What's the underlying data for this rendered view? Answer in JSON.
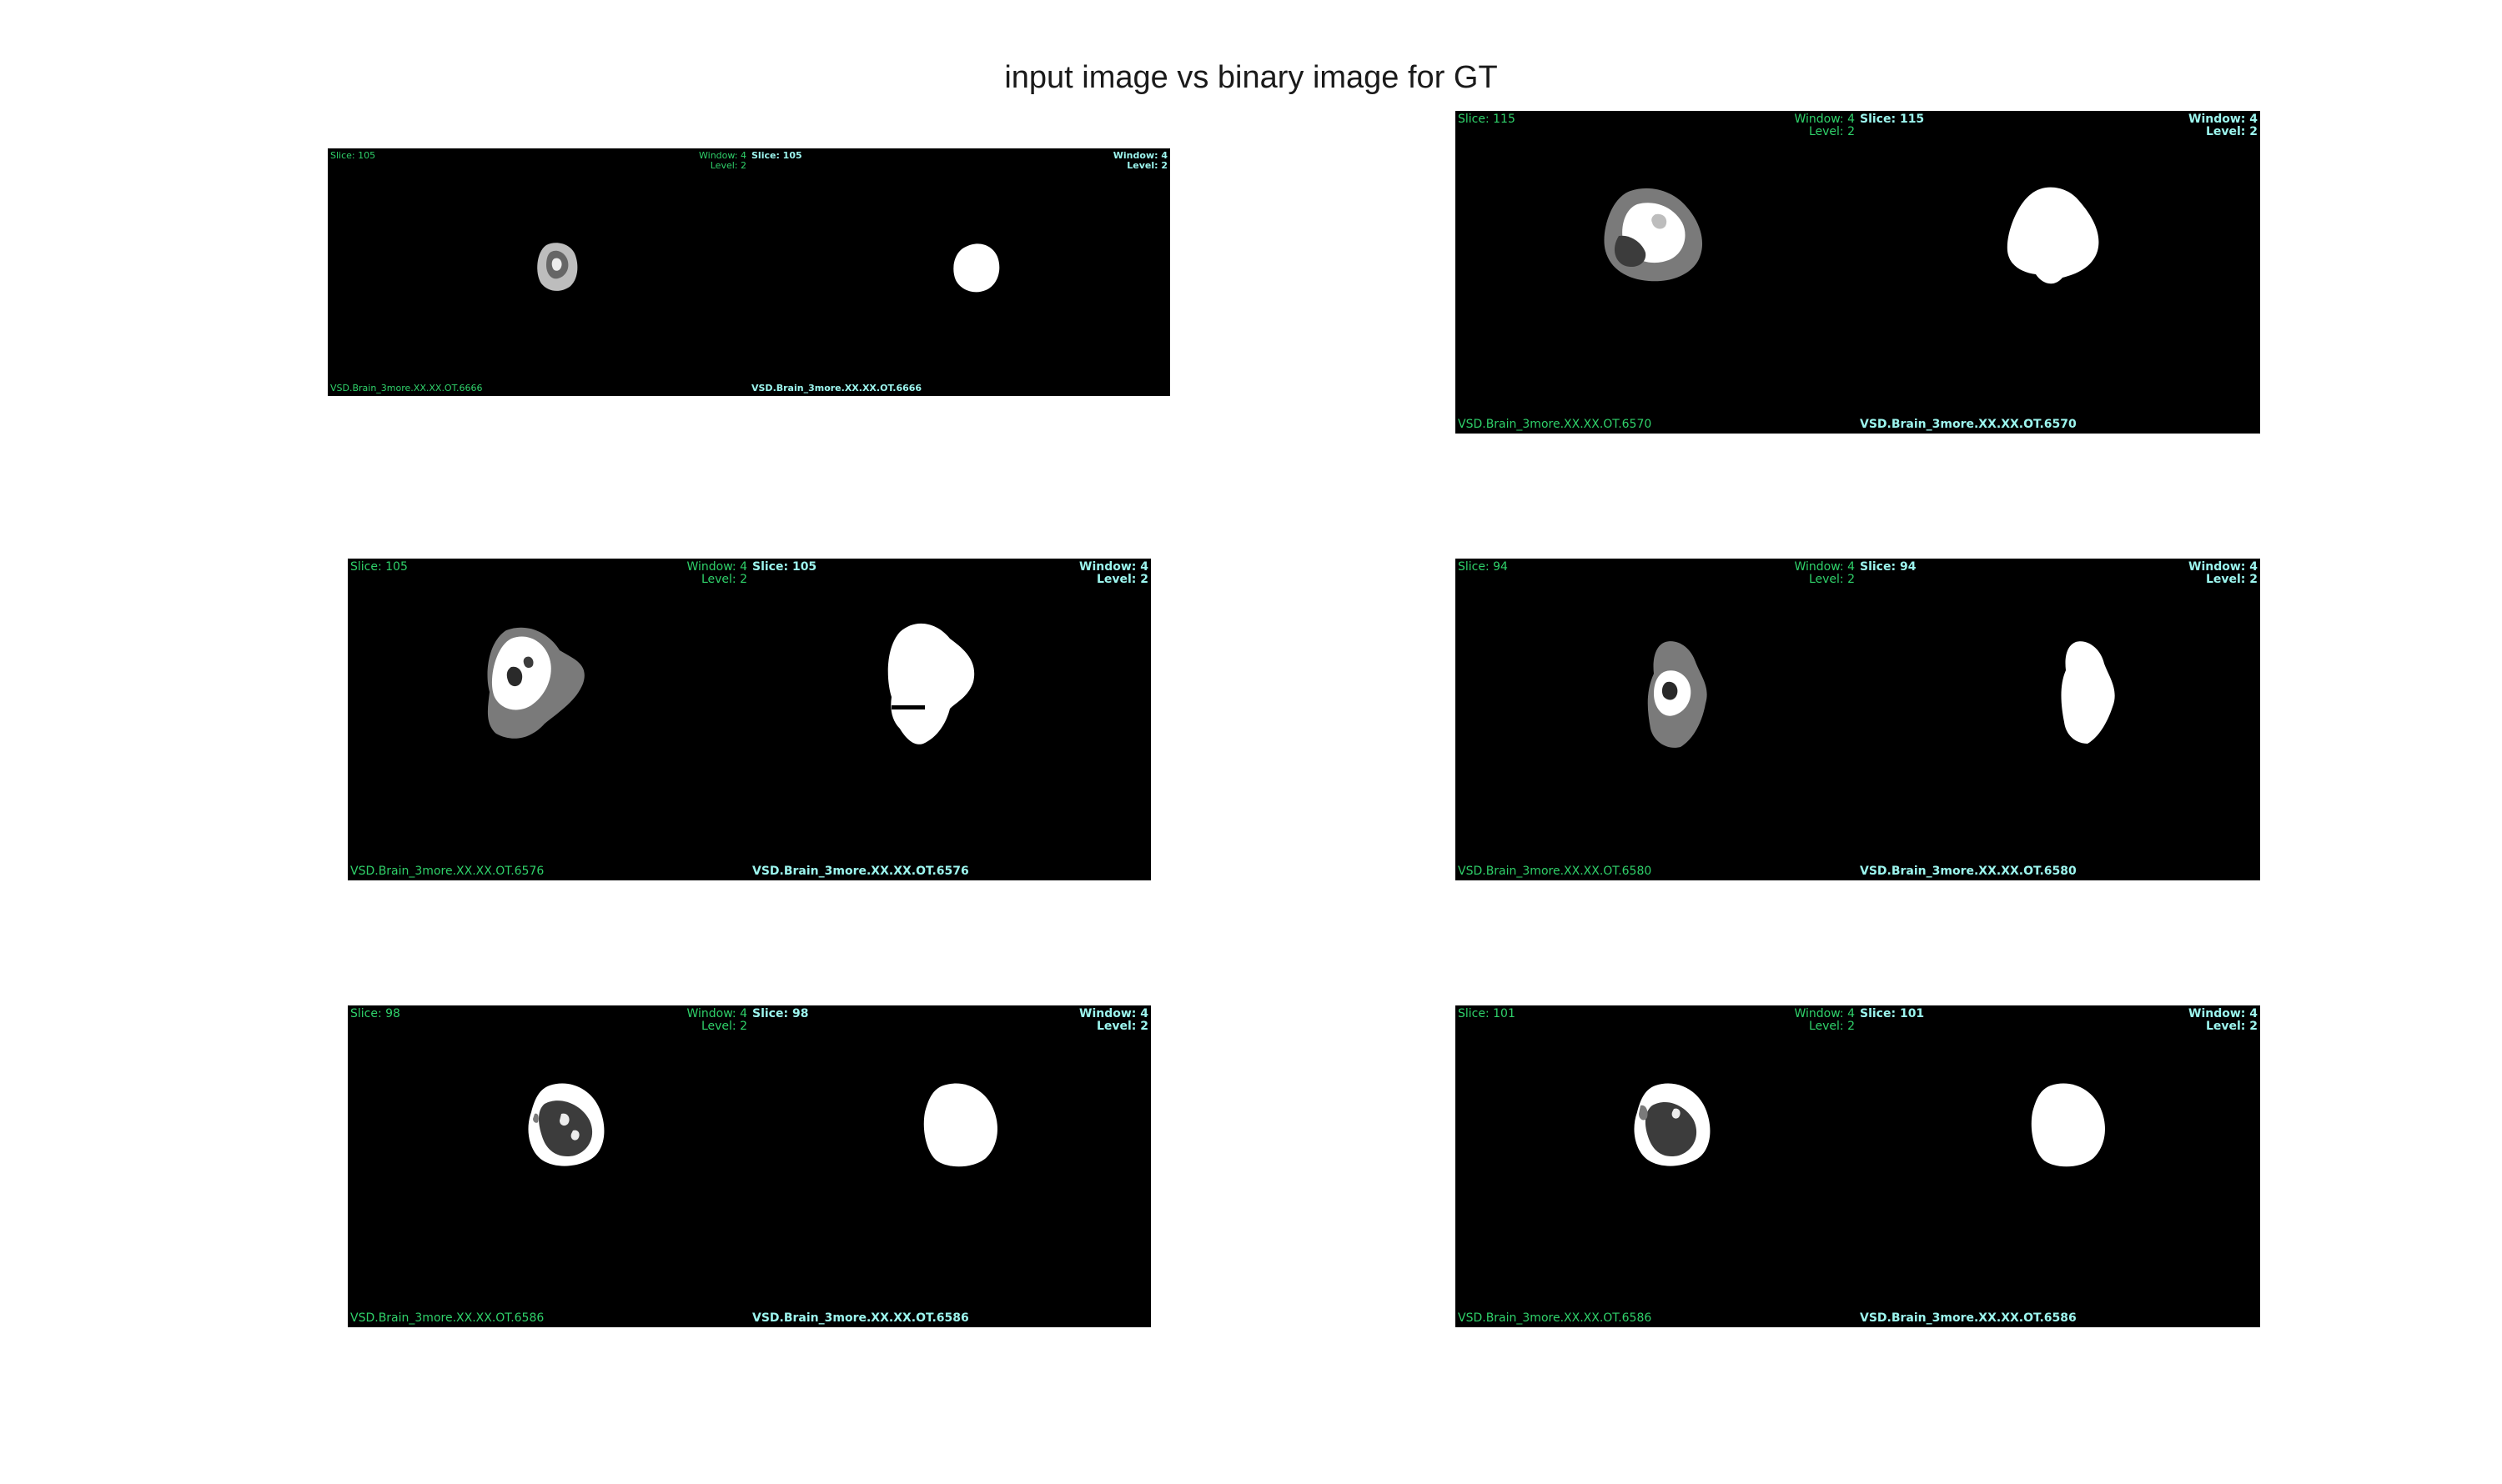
{
  "title": "input image vs binary image for GT",
  "colors": {
    "input_overlay": "#2fd16a",
    "gt_overlay": "#9cf5ee",
    "background": "#000000"
  },
  "panels": [
    {
      "input": {
        "slice": "Slice: 105",
        "window": "Window: 4",
        "level": "Level: 2",
        "file": "VSD.Brain_3more.XX.XX.OT.6666"
      },
      "gt": {
        "slice": "Slice: 105",
        "window": "Window: 4",
        "level": "Level: 2",
        "file": "VSD.Brain_3more.XX.XX.OT.6666"
      }
    },
    {
      "input": {
        "slice": "Slice: 115",
        "window": "Window: 4",
        "level": "Level: 2",
        "file": "VSD.Brain_3more.XX.XX.OT.6570"
      },
      "gt": {
        "slice": "Slice: 115",
        "window": "Window: 4",
        "level": "Level: 2",
        "file": "VSD.Brain_3more.XX.XX.OT.6570"
      }
    },
    {
      "input": {
        "slice": "Slice: 105",
        "window": "Window: 4",
        "level": "Level: 2",
        "file": "VSD.Brain_3more.XX.XX.OT.6576"
      },
      "gt": {
        "slice": "Slice: 105",
        "window": "Window: 4",
        "level": "Level: 2",
        "file": "VSD.Brain_3more.XX.XX.OT.6576"
      }
    },
    {
      "input": {
        "slice": "Slice: 94",
        "window": "Window: 4",
        "level": "Level: 2",
        "file": "VSD.Brain_3more.XX.XX.OT.6580"
      },
      "gt": {
        "slice": "Slice: 94",
        "window": "Window: 4",
        "level": "Level: 2",
        "file": "VSD.Brain_3more.XX.XX.OT.6580"
      }
    },
    {
      "input": {
        "slice": "Slice: 98",
        "window": "Window: 4",
        "level": "Level: 2",
        "file": "VSD.Brain_3more.XX.XX.OT.6586"
      },
      "gt": {
        "slice": "Slice: 98",
        "window": "Window: 4",
        "level": "Level: 2",
        "file": "VSD.Brain_3more.XX.XX.OT.6586"
      }
    },
    {
      "input": {
        "slice": "Slice: 101",
        "window": "Window: 4",
        "level": "Level: 2",
        "file": "VSD.Brain_3more.XX.XX.OT.6586"
      },
      "gt": {
        "slice": "Slice: 101",
        "window": "Window: 4",
        "level": "Level: 2",
        "file": "VSD.Brain_3more.XX.XX.OT.6586"
      }
    }
  ]
}
